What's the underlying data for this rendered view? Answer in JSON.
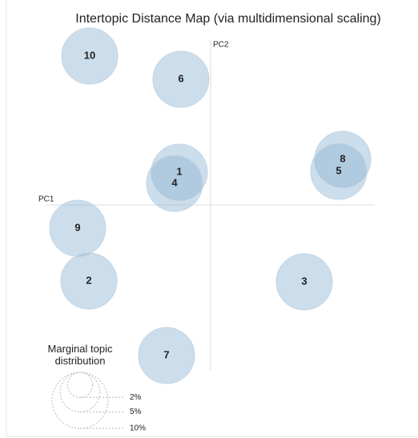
{
  "chart_data": {
    "type": "bubble",
    "title": "Intertopic Distance Map (via multidimensional scaling)",
    "xlabel": "PC1",
    "ylabel": "PC2",
    "labels": [
      "10",
      "6",
      "1",
      "4",
      "8",
      "5",
      "9",
      "2",
      "3",
      "7"
    ],
    "x": [
      -1.51,
      -0.37,
      -0.39,
      -0.45,
      1.65,
      1.6,
      -1.66,
      -1.52,
      1.17,
      -0.55
    ],
    "y": [
      1.86,
      1.57,
      0.41,
      0.27,
      0.57,
      0.42,
      -0.29,
      -0.95,
      -0.96,
      -1.88
    ],
    "sizes": [
      10,
      10,
      10,
      10,
      10,
      10,
      10,
      10,
      10,
      10
    ],
    "xlim": [
      -2.05,
      2.05
    ],
    "ylim": [
      -2.06,
      2.06
    ],
    "color": "#8fb3d3",
    "size_legend": {
      "title": "Marginal topic distribution",
      "values": [
        2,
        5,
        10
      ],
      "labels": [
        "2%",
        "5%",
        "10%"
      ]
    }
  }
}
